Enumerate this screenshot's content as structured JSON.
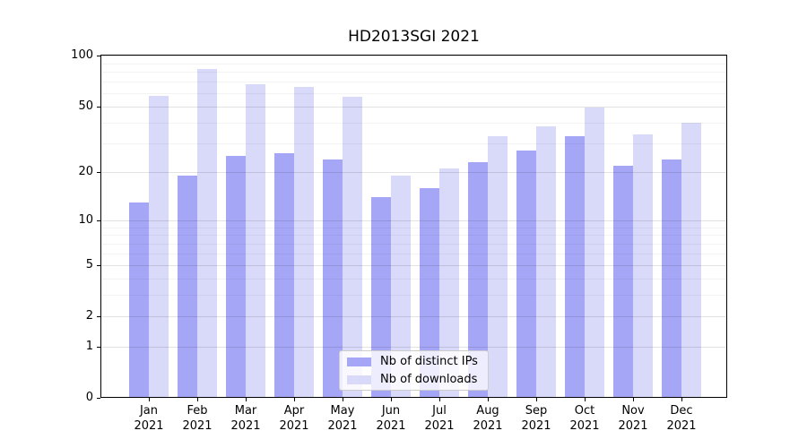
{
  "title": "HD2013SGI 2021",
  "chart_data": {
    "type": "bar",
    "title": "HD2013SGI 2021",
    "categories": [
      "Jan 2021",
      "Feb 2021",
      "Mar 2021",
      "Apr 2021",
      "May 2021",
      "Jun 2021",
      "Jul 2021",
      "Aug 2021",
      "Sep 2021",
      "Oct 2021",
      "Nov 2021",
      "Dec 2021"
    ],
    "series": [
      {
        "name": "Nb of distinct IPs",
        "color": "#a6a6f7",
        "values": [
          13,
          19,
          25,
          26,
          24,
          14,
          16,
          23,
          27,
          33,
          22,
          24
        ]
      },
      {
        "name": "Nb of downloads",
        "color": "#d9d9f9",
        "values": [
          58,
          83,
          68,
          65,
          57,
          19,
          21,
          33,
          38,
          49,
          34,
          40
        ]
      }
    ],
    "y_scale": "log(1+v)",
    "y_ticks": [
      0,
      1,
      2,
      5,
      10,
      20,
      50,
      100
    ],
    "y_minor_gridlines": [
      3,
      4,
      6,
      7,
      8,
      9,
      30,
      40,
      60,
      70,
      80,
      90
    ],
    "ylim": [
      0,
      103
    ],
    "xlabel": "",
    "ylabel": "",
    "grid": "both",
    "legend_position": "lower center",
    "bar_group_width": 0.8
  }
}
